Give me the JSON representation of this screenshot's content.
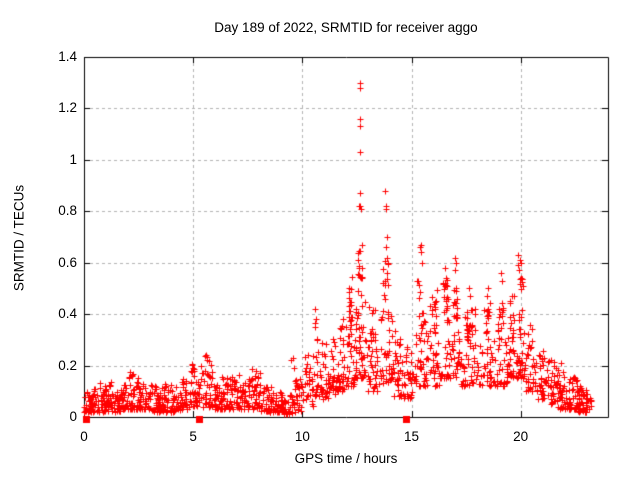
{
  "chart_data": {
    "type": "scatter",
    "title": "Day 189 of 2022, SRMTID for receiver aggo",
    "xlabel": "GPS time / hours",
    "ylabel": "SRMTID / TECUs",
    "xlim": [
      0,
      24
    ],
    "ylim": [
      0,
      1.4
    ],
    "xticks": [
      0,
      5,
      10,
      15,
      20
    ],
    "xtick_labels": [
      "0",
      "5",
      "10",
      "15",
      "20"
    ],
    "yticks": [
      0,
      0.2,
      0.4,
      0.6,
      0.8,
      1,
      1.2,
      1.4
    ],
    "ytick_labels": [
      "0",
      "0.2",
      "0.4",
      "0.6",
      "0.8",
      "1",
      "1.2",
      "1.4"
    ],
    "grid": true,
    "grid_color": "#b4b4b4",
    "marker_color": "#ff0000",
    "marker": "plus",
    "marker_size": 7,
    "series": [
      {
        "marker": "plus",
        "band_bins": [
          [
            0.0,
            0.3,
            0.02,
            0.1,
            25
          ],
          [
            0.3,
            0.7,
            0.02,
            0.11,
            30
          ],
          [
            0.7,
            1.0,
            0.02,
            0.14,
            28
          ],
          [
            1.0,
            1.3,
            0.02,
            0.14,
            28
          ],
          [
            1.3,
            1.7,
            0.02,
            0.11,
            30
          ],
          [
            1.7,
            2.0,
            0.03,
            0.13,
            28
          ],
          [
            2.0,
            2.5,
            0.03,
            0.19,
            40
          ],
          [
            2.5,
            3.0,
            0.03,
            0.13,
            38
          ],
          [
            3.0,
            3.5,
            0.02,
            0.13,
            38
          ],
          [
            3.5,
            4.0,
            0.02,
            0.13,
            38
          ],
          [
            4.0,
            4.4,
            0.02,
            0.12,
            32
          ],
          [
            4.4,
            4.8,
            0.03,
            0.15,
            30
          ],
          [
            4.8,
            5.1,
            0.04,
            0.21,
            24
          ],
          [
            5.1,
            5.35,
            0.04,
            0.15,
            18
          ],
          [
            5.35,
            5.9,
            0.04,
            0.24,
            40
          ],
          [
            5.9,
            6.3,
            0.03,
            0.13,
            30
          ],
          [
            6.3,
            7.0,
            0.03,
            0.16,
            50
          ],
          [
            7.0,
            7.6,
            0.03,
            0.18,
            45
          ],
          [
            7.6,
            8.1,
            0.03,
            0.19,
            38
          ],
          [
            8.1,
            8.6,
            0.02,
            0.12,
            36
          ],
          [
            8.6,
            9.1,
            0.02,
            0.1,
            34
          ],
          [
            9.1,
            9.6,
            0.01,
            0.09,
            28
          ],
          [
            9.6,
            10.0,
            0.02,
            0.16,
            26
          ],
          [
            10.0,
            10.5,
            0.04,
            0.26,
            30
          ],
          [
            10.5,
            10.75,
            0.08,
            0.42,
            18
          ],
          [
            10.75,
            11.2,
            0.07,
            0.3,
            30
          ],
          [
            11.2,
            11.6,
            0.09,
            0.32,
            30
          ],
          [
            11.6,
            12.0,
            0.1,
            0.38,
            34
          ],
          [
            12.0,
            12.4,
            0.12,
            0.55,
            45
          ],
          [
            12.4,
            12.9,
            0.15,
            0.7,
            60
          ],
          [
            12.9,
            13.5,
            0.1,
            0.45,
            45
          ],
          [
            13.5,
            14.1,
            0.13,
            0.62,
            50
          ],
          [
            14.1,
            14.6,
            0.08,
            0.35,
            40
          ],
          [
            14.6,
            15.1,
            0.07,
            0.3,
            35
          ],
          [
            15.1,
            15.7,
            0.12,
            0.6,
            48
          ],
          [
            15.7,
            16.3,
            0.12,
            0.5,
            45
          ],
          [
            16.3,
            16.8,
            0.15,
            0.55,
            45
          ],
          [
            16.8,
            17.2,
            0.15,
            0.52,
            40
          ],
          [
            17.2,
            18.2,
            0.12,
            0.42,
            70
          ],
          [
            18.2,
            18.7,
            0.12,
            0.45,
            40
          ],
          [
            18.7,
            19.4,
            0.12,
            0.45,
            48
          ],
          [
            19.4,
            19.8,
            0.15,
            0.48,
            35
          ],
          [
            19.8,
            20.2,
            0.15,
            0.55,
            40
          ],
          [
            20.2,
            20.7,
            0.1,
            0.38,
            38
          ],
          [
            20.7,
            21.2,
            0.07,
            0.28,
            36
          ],
          [
            21.2,
            21.7,
            0.05,
            0.22,
            34
          ],
          [
            21.7,
            22.2,
            0.03,
            0.18,
            36
          ],
          [
            22.2,
            22.6,
            0.03,
            0.16,
            40
          ],
          [
            22.6,
            23.0,
            0.02,
            0.12,
            36
          ],
          [
            23.0,
            23.25,
            0.03,
            0.1,
            14
          ]
        ],
        "outliers": [
          [
            9.5,
            0.22
          ],
          [
            9.57,
            0.23
          ],
          [
            9.62,
            0.19
          ],
          [
            10.6,
            0.42
          ],
          [
            10.62,
            0.38
          ],
          [
            10.58,
            0.35
          ],
          [
            12.62,
            1.3
          ],
          [
            12.63,
            1.28
          ],
          [
            12.64,
            1.16
          ],
          [
            12.65,
            1.13
          ],
          [
            12.66,
            1.03
          ],
          [
            12.63,
            0.87
          ],
          [
            12.6,
            0.82
          ],
          [
            12.64,
            0.82
          ],
          [
            12.67,
            0.81
          ],
          [
            12.75,
            0.67
          ],
          [
            13.8,
            0.88
          ],
          [
            13.82,
            0.82
          ],
          [
            13.85,
            0.81
          ],
          [
            13.9,
            0.7
          ],
          [
            13.84,
            0.66
          ],
          [
            13.86,
            0.62
          ],
          [
            15.44,
            0.67
          ],
          [
            15.4,
            0.66
          ],
          [
            15.42,
            0.64
          ],
          [
            15.46,
            0.6
          ],
          [
            16.55,
            0.58
          ],
          [
            16.6,
            0.54
          ],
          [
            16.98,
            0.57
          ],
          [
            17.0,
            0.62
          ],
          [
            17.05,
            0.6
          ],
          [
            17.65,
            0.5
          ],
          [
            17.7,
            0.47
          ],
          [
            18.5,
            0.5
          ],
          [
            18.45,
            0.47
          ],
          [
            19.1,
            0.56
          ],
          [
            19.15,
            0.53
          ],
          [
            19.88,
            0.59
          ],
          [
            19.9,
            0.63
          ],
          [
            19.92,
            0.57
          ],
          [
            19.95,
            0.61
          ],
          [
            20.0,
            0.6
          ],
          [
            21.4,
            0.22
          ],
          [
            21.85,
            0.21
          ]
        ]
      },
      {
        "marker": "filled-square",
        "points": [
          [
            0.1,
            0
          ],
          [
            5.26,
            0
          ],
          [
            14.75,
            0
          ]
        ]
      }
    ]
  }
}
